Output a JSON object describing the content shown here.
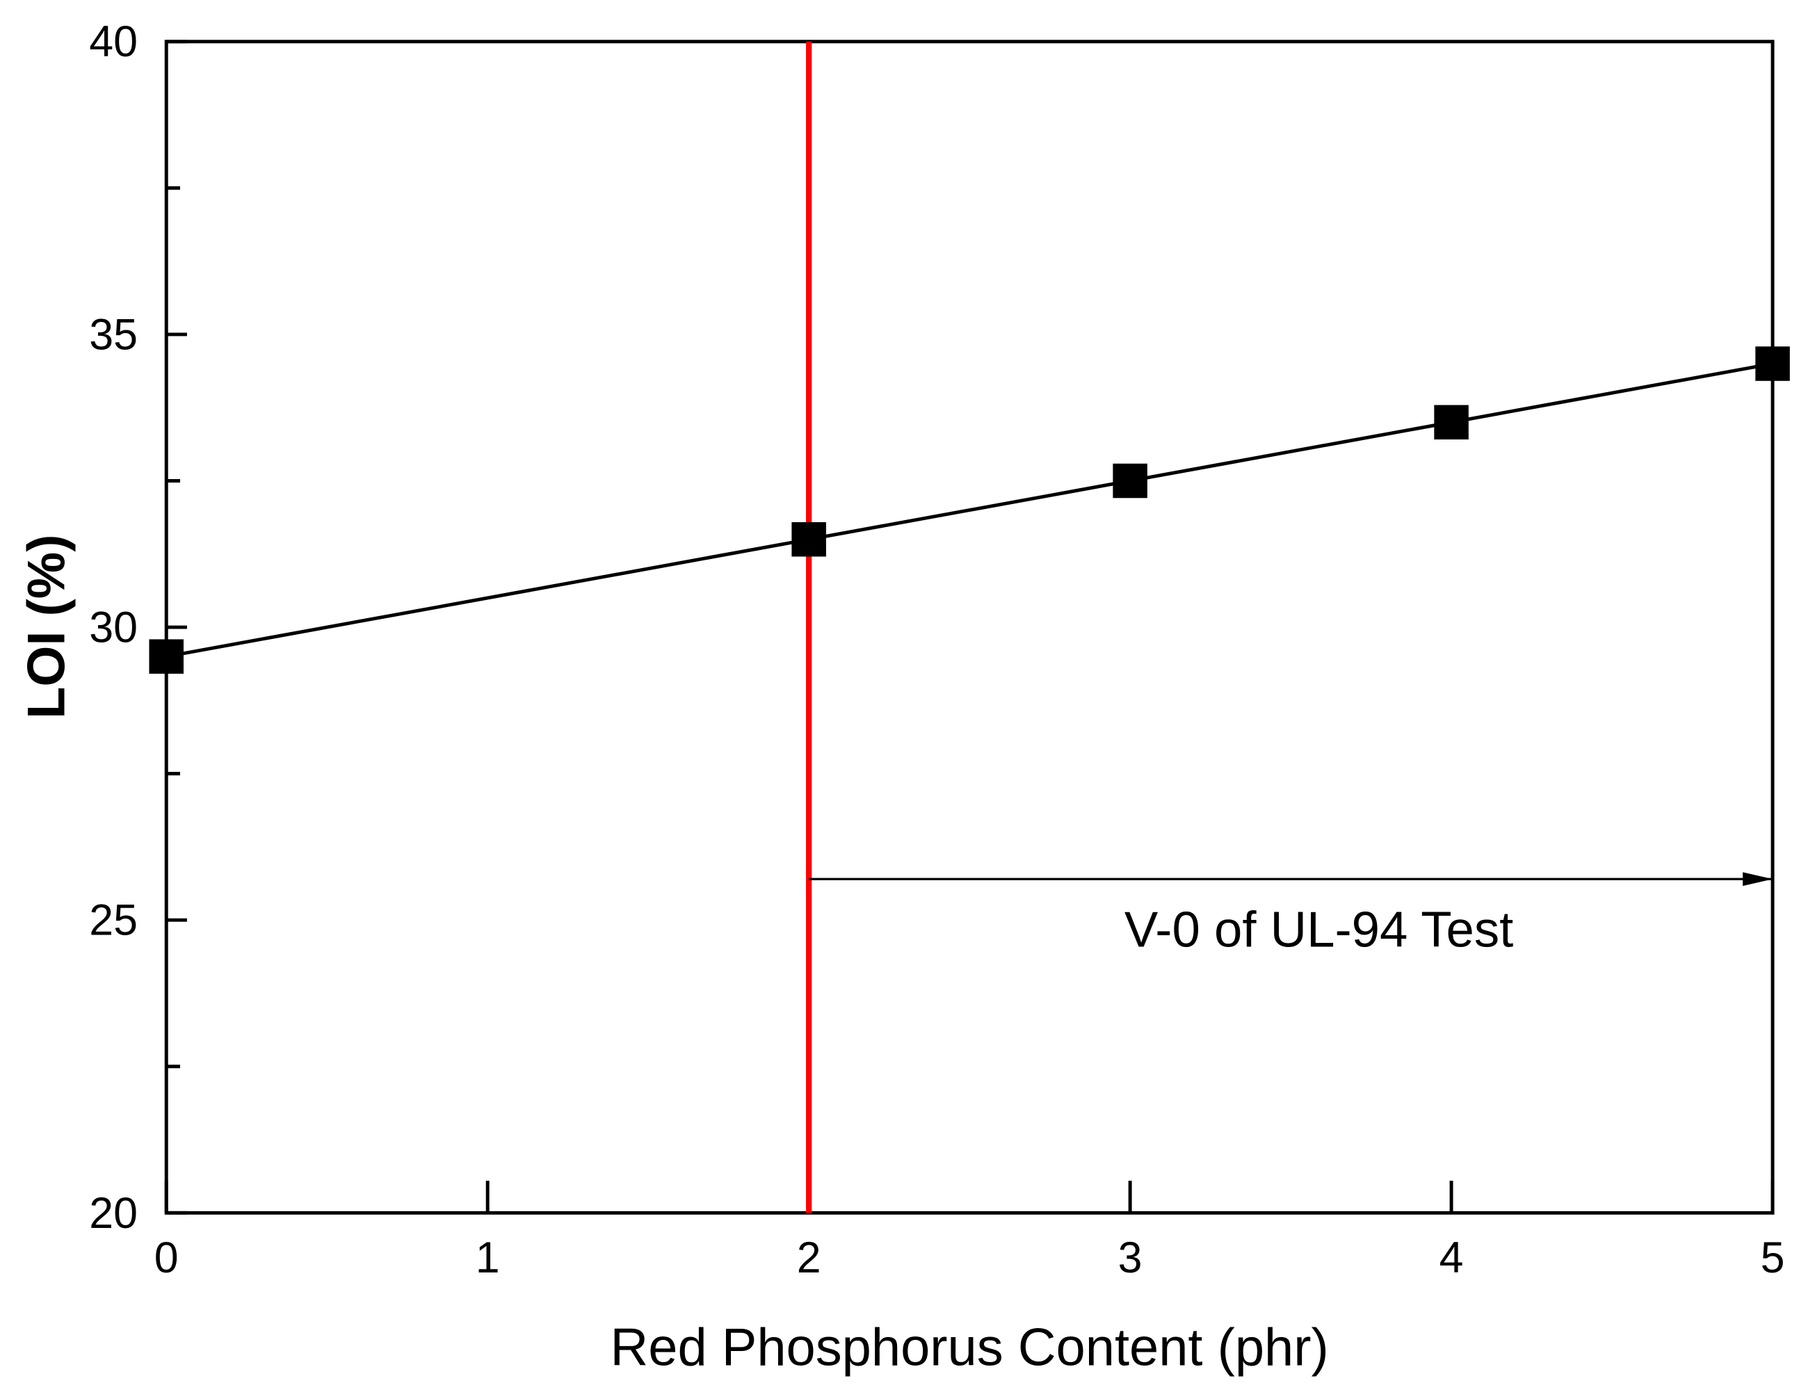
{
  "chart_data": {
    "type": "line",
    "title": "",
    "xlabel": "Red Phosphorus Content (phr)",
    "ylabel": "LOI (%)",
    "xlim": [
      0,
      5
    ],
    "ylim": [
      20,
      40
    ],
    "xticks": [
      "0",
      "1",
      "2",
      "3",
      "4",
      "5"
    ],
    "yticks": [
      "20",
      "25",
      "30",
      "35",
      "40"
    ],
    "grid": false,
    "series": [
      {
        "x": [
          0,
          2,
          3,
          4,
          5
        ],
        "y": [
          29.5,
          31.5,
          32.5,
          33.5,
          34.5
        ],
        "marker": "square",
        "color": "#000000"
      }
    ],
    "reference_line": {
      "x": 2,
      "color": "#ff0000"
    },
    "annotation": {
      "text": "V-0 of UL-94 Test",
      "arrow_from_x": 2,
      "arrow_to_x": 5,
      "arrow_y": 25.7
    }
  }
}
